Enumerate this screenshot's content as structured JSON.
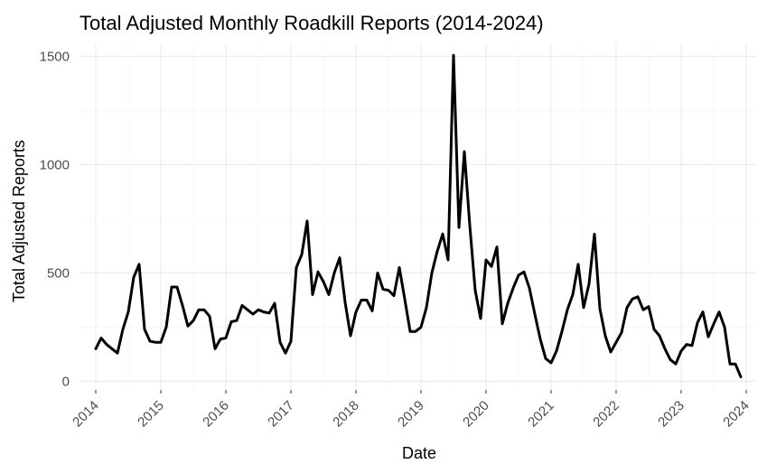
{
  "chart_data": {
    "type": "line",
    "title": "Total Adjusted Monthly Roadkill Reports (2014-2024)",
    "xlabel": "Date",
    "ylabel": "Total Adjusted Reports",
    "x_ticks": [
      "2014",
      "2015",
      "2016",
      "2017",
      "2018",
      "2019",
      "2020",
      "2021",
      "2022",
      "2023",
      "2024"
    ],
    "y_ticks": [
      0,
      500,
      1000,
      1500
    ],
    "xlim": [
      "2013-10",
      "2024-03"
    ],
    "ylim": [
      -40,
      1560
    ],
    "grid": true,
    "legend": "none",
    "series": [
      {
        "color": "#000000",
        "points": [
          [
            "2014-01",
            150
          ],
          [
            "2014-02",
            200
          ],
          [
            "2014-03",
            170
          ],
          [
            "2014-04",
            150
          ],
          [
            "2014-05",
            130
          ],
          [
            "2014-06",
            240
          ],
          [
            "2014-07",
            320
          ],
          [
            "2014-08",
            480
          ],
          [
            "2014-09",
            540
          ],
          [
            "2014-10",
            240
          ],
          [
            "2014-11",
            185
          ],
          [
            "2014-12",
            180
          ],
          [
            "2015-01",
            180
          ],
          [
            "2015-02",
            250
          ],
          [
            "2015-03",
            435
          ],
          [
            "2015-04",
            435
          ],
          [
            "2015-05",
            350
          ],
          [
            "2015-06",
            255
          ],
          [
            "2015-07",
            280
          ],
          [
            "2015-08",
            330
          ],
          [
            "2015-09",
            330
          ],
          [
            "2015-10",
            300
          ],
          [
            "2015-11",
            150
          ],
          [
            "2015-12",
            195
          ],
          [
            "2016-01",
            200
          ],
          [
            "2016-02",
            275
          ],
          [
            "2016-03",
            280
          ],
          [
            "2016-04",
            350
          ],
          [
            "2016-05",
            330
          ],
          [
            "2016-06",
            310
          ],
          [
            "2016-07",
            330
          ],
          [
            "2016-08",
            320
          ],
          [
            "2016-09",
            315
          ],
          [
            "2016-10",
            360
          ],
          [
            "2016-11",
            180
          ],
          [
            "2016-12",
            130
          ],
          [
            "2017-01",
            185
          ],
          [
            "2017-02",
            525
          ],
          [
            "2017-03",
            585
          ],
          [
            "2017-04",
            740
          ],
          [
            "2017-05",
            400
          ],
          [
            "2017-06",
            505
          ],
          [
            "2017-07",
            460
          ],
          [
            "2017-08",
            400
          ],
          [
            "2017-09",
            500
          ],
          [
            "2017-10",
            570
          ],
          [
            "2017-11",
            365
          ],
          [
            "2017-12",
            210
          ],
          [
            "2018-01",
            320
          ],
          [
            "2018-02",
            375
          ],
          [
            "2018-03",
            375
          ],
          [
            "2018-04",
            325
          ],
          [
            "2018-05",
            500
          ],
          [
            "2018-06",
            425
          ],
          [
            "2018-07",
            420
          ],
          [
            "2018-08",
            395
          ],
          [
            "2018-09",
            525
          ],
          [
            "2018-10",
            380
          ],
          [
            "2018-11",
            230
          ],
          [
            "2018-12",
            230
          ],
          [
            "2019-01",
            250
          ],
          [
            "2019-02",
            340
          ],
          [
            "2019-03",
            500
          ],
          [
            "2019-04",
            600
          ],
          [
            "2019-05",
            680
          ],
          [
            "2019-06",
            560
          ],
          [
            "2019-07",
            1505
          ],
          [
            "2019-08",
            710
          ],
          [
            "2019-09",
            1060
          ],
          [
            "2019-10",
            720
          ],
          [
            "2019-11",
            420
          ],
          [
            "2019-12",
            290
          ],
          [
            "2020-01",
            560
          ],
          [
            "2020-02",
            530
          ],
          [
            "2020-03",
            620
          ],
          [
            "2020-04",
            265
          ],
          [
            "2020-05",
            360
          ],
          [
            "2020-06",
            430
          ],
          [
            "2020-07",
            490
          ],
          [
            "2020-08",
            505
          ],
          [
            "2020-09",
            430
          ],
          [
            "2020-10",
            310
          ],
          [
            "2020-11",
            195
          ],
          [
            "2020-12",
            105
          ],
          [
            "2021-01",
            85
          ],
          [
            "2021-02",
            140
          ],
          [
            "2021-03",
            230
          ],
          [
            "2021-04",
            330
          ],
          [
            "2021-05",
            400
          ],
          [
            "2021-06",
            540
          ],
          [
            "2021-07",
            340
          ],
          [
            "2021-08",
            450
          ],
          [
            "2021-09",
            680
          ],
          [
            "2021-10",
            335
          ],
          [
            "2021-11",
            210
          ],
          [
            "2021-12",
            135
          ],
          [
            "2022-01",
            180
          ],
          [
            "2022-02",
            225
          ],
          [
            "2022-03",
            340
          ],
          [
            "2022-04",
            380
          ],
          [
            "2022-05",
            390
          ],
          [
            "2022-06",
            330
          ],
          [
            "2022-07",
            345
          ],
          [
            "2022-08",
            240
          ],
          [
            "2022-09",
            210
          ],
          [
            "2022-10",
            150
          ],
          [
            "2022-11",
            100
          ],
          [
            "2022-12",
            80
          ],
          [
            "2023-01",
            140
          ],
          [
            "2023-02",
            170
          ],
          [
            "2023-03",
            165
          ],
          [
            "2023-04",
            270
          ],
          [
            "2023-05",
            320
          ],
          [
            "2023-06",
            205
          ],
          [
            "2023-07",
            265
          ],
          [
            "2023-08",
            320
          ],
          [
            "2023-09",
            250
          ],
          [
            "2023-10",
            80
          ],
          [
            "2023-11",
            80
          ],
          [
            "2023-12",
            20
          ]
        ]
      }
    ]
  }
}
